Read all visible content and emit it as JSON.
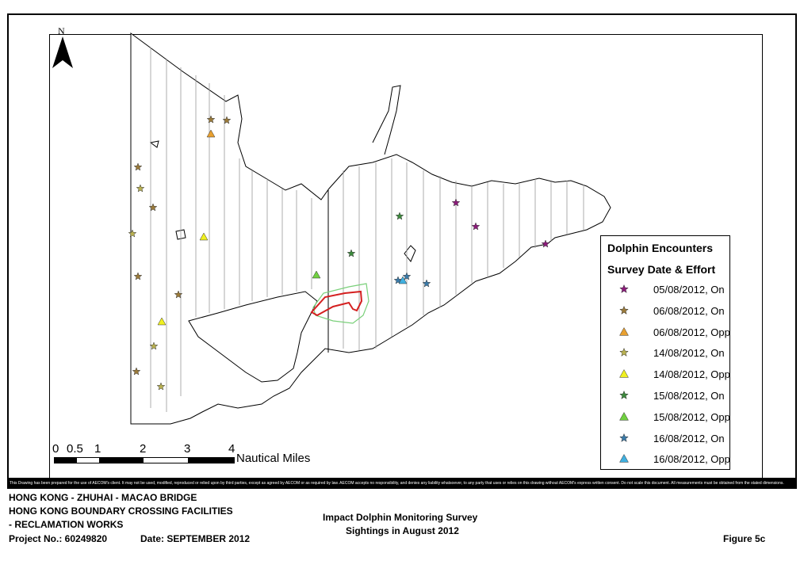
{
  "map": {
    "north_label": "N",
    "scale": {
      "ticks": [
        "0",
        "0.5",
        "1",
        "2",
        "3",
        "4"
      ],
      "unit": "Nautical Miles"
    }
  },
  "legend": {
    "title": "Dolphin Encounters",
    "subtitle": "Survey Date & Effort",
    "items": [
      {
        "label": "05/08/2012, On",
        "symbol": "star",
        "color": "#8B1A7A"
      },
      {
        "label": "06/08/2012, On",
        "symbol": "star",
        "color": "#9A7A3A"
      },
      {
        "label": "06/08/2012, Opp",
        "symbol": "triangle",
        "color": "#E8A030"
      },
      {
        "label": "14/08/2012, On",
        "symbol": "star",
        "color": "#B8B050"
      },
      {
        "label": "14/08/2012, Opp",
        "symbol": "triangle",
        "color": "#F0F020"
      },
      {
        "label": "15/08/2012, On",
        "symbol": "star",
        "color": "#3C8A3C"
      },
      {
        "label": "15/08/2012, Opp",
        "symbol": "triangle",
        "color": "#70D040"
      },
      {
        "label": "16/08/2012, On",
        "symbol": "star",
        "color": "#3A7AA8"
      },
      {
        "label": "16/08/2012, Opp",
        "symbol": "triangle",
        "color": "#40B0E0"
      }
    ]
  },
  "sightings": [
    {
      "group": 0,
      "lon": 575,
      "lat": 256
    },
    {
      "group": 0,
      "lon": 600,
      "lat": 286
    },
    {
      "group": 0,
      "lon": 688,
      "lat": 308
    },
    {
      "group": 1,
      "lon": 266,
      "lat": 151
    },
    {
      "group": 1,
      "lon": 286,
      "lat": 152
    },
    {
      "group": 1,
      "lon": 174,
      "lat": 211
    },
    {
      "group": 1,
      "lon": 193,
      "lat": 262
    },
    {
      "group": 1,
      "lon": 174,
      "lat": 349
    },
    {
      "group": 1,
      "lon": 225,
      "lat": 372
    },
    {
      "group": 1,
      "lon": 172,
      "lat": 469
    },
    {
      "group": 2,
      "lon": 266,
      "lat": 169
    },
    {
      "group": 3,
      "lon": 177,
      "lat": 238
    },
    {
      "group": 3,
      "lon": 167,
      "lat": 295
    },
    {
      "group": 3,
      "lon": 194,
      "lat": 437
    },
    {
      "group": 3,
      "lon": 203,
      "lat": 488
    },
    {
      "group": 4,
      "lon": 257,
      "lat": 299
    },
    {
      "group": 4,
      "lon": 204,
      "lat": 406
    },
    {
      "group": 5,
      "lon": 504,
      "lat": 273
    },
    {
      "group": 5,
      "lon": 443,
      "lat": 320
    },
    {
      "group": 6,
      "lon": 399,
      "lat": 347
    },
    {
      "group": 7,
      "lon": 502,
      "lat": 354
    },
    {
      "group": 7,
      "lon": 513,
      "lat": 349
    },
    {
      "group": 7,
      "lon": 538,
      "lat": 358
    },
    {
      "group": 8,
      "lon": 508,
      "lat": 354
    }
  ],
  "disclaimer": "This Drawing has been prepared for the use of AECOM's client. It may not be used, modified, reproduced or relied upon by third parties, except as agreed by AECOM or as required by law. AECOM accepts no responsibility, and denies any liability whatsoever, to any party that uses or relies on this drawing without AECOM's express written consent. Do not scale this document. All measurements must be obtained from the stated dimensions.",
  "title_block": {
    "project_line1": "HONG KONG - ZHUHAI - MACAO BRIDGE",
    "project_line2": "HONG KONG BOUNDARY CROSSING FACILITIES",
    "project_line3": "- RECLAMATION WORKS",
    "project_no": "Project No.: 60249820",
    "date": "Date: SEPTEMBER 2012",
    "drawing_title1": "Impact Dolphin Monitoring Survey",
    "drawing_title2": "Sightings in August 2012",
    "figure": "Figure 5c"
  }
}
